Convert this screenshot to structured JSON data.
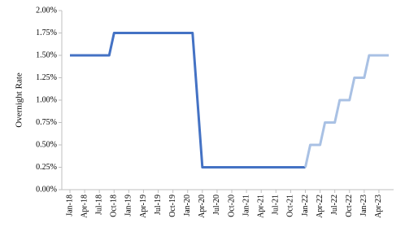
{
  "chart_data": {
    "type": "line",
    "y_label": "Overnight Rate",
    "categories": [
      "Jan-18",
      null,
      null,
      "Apr-18",
      null,
      null,
      "Jul-18",
      null,
      null,
      "Oct-18",
      null,
      null,
      "Jan-19",
      null,
      null,
      "Apr-19",
      null,
      null,
      "Jul-19",
      null,
      null,
      "Oct-19",
      null,
      null,
      "Jan-20",
      null,
      null,
      "Apr-20",
      null,
      null,
      "Jul-20",
      null,
      null,
      "Oct-20",
      null,
      null,
      "Jan-21",
      null,
      null,
      "Apr-21",
      null,
      null,
      "Jul-21",
      null,
      null,
      "Oct-21",
      null,
      null,
      "Jan-22",
      null,
      null,
      "Apr-22",
      null,
      null,
      "Jul-22",
      null,
      null,
      "Oct-22",
      null,
      null,
      "Jan-23",
      null,
      null,
      "Apr-23",
      null,
      null
    ],
    "series": [
      {
        "color": "#4472c4",
        "values": [
          1.5,
          1.5,
          1.5,
          1.5,
          1.5,
          1.5,
          1.5,
          1.5,
          1.5,
          1.75,
          1.75,
          1.75,
          1.75,
          1.75,
          1.75,
          1.75,
          1.75,
          1.75,
          1.75,
          1.75,
          1.75,
          1.75,
          1.75,
          1.75,
          1.75,
          1.75,
          1.0,
          0.25,
          0.25,
          0.25,
          0.25,
          0.25,
          0.25,
          0.25,
          0.25,
          0.25,
          0.25,
          0.25,
          0.25,
          0.25,
          0.25,
          0.25,
          0.25,
          0.25,
          0.25,
          0.25,
          0.25,
          0.25,
          0.25,
          null,
          null,
          null,
          null,
          null,
          null,
          null,
          null,
          null,
          null,
          null,
          null,
          null,
          null,
          null,
          null,
          null
        ]
      },
      {
        "color": "#a9c1e4",
        "values": [
          null,
          null,
          null,
          null,
          null,
          null,
          null,
          null,
          null,
          null,
          null,
          null,
          null,
          null,
          null,
          null,
          null,
          null,
          null,
          null,
          null,
          null,
          null,
          null,
          null,
          null,
          null,
          null,
          null,
          null,
          null,
          null,
          null,
          null,
          null,
          null,
          null,
          null,
          null,
          null,
          null,
          null,
          null,
          null,
          null,
          null,
          null,
          null,
          0.25,
          0.5,
          0.5,
          0.5,
          0.75,
          0.75,
          0.75,
          1.0,
          1.0,
          1.0,
          1.25,
          1.25,
          1.25,
          1.5,
          1.5,
          1.5,
          1.5,
          1.5
        ]
      }
    ],
    "ylim": [
      0,
      2
    ],
    "yticks": [
      {
        "value": 0,
        "label": "0.00%"
      },
      {
        "value": 0.25,
        "label": "0.25%"
      },
      {
        "value": 0.5,
        "label": "0.50%"
      },
      {
        "value": 0.75,
        "label": "0.75%"
      },
      {
        "value": 1,
        "label": "1.00%"
      },
      {
        "value": 1.25,
        "label": "1.25%"
      },
      {
        "value": 1.5,
        "label": "1.50%"
      },
      {
        "value": 1.75,
        "label": "1.75%"
      },
      {
        "value": 2,
        "label": "2.00%"
      }
    ]
  }
}
